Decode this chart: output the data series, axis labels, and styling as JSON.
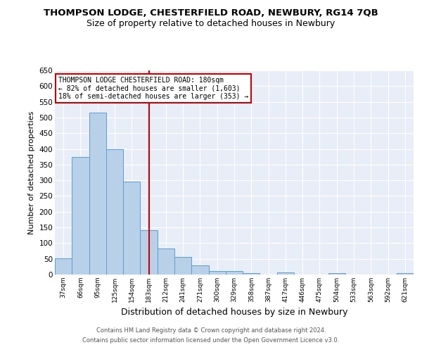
{
  "title": "THOMPSON LODGE, CHESTERFIELD ROAD, NEWBURY, RG14 7QB",
  "subtitle": "Size of property relative to detached houses in Newbury",
  "xlabel": "Distribution of detached houses by size in Newbury",
  "ylabel": "Number of detached properties",
  "footer_line1": "Contains HM Land Registry data © Crown copyright and database right 2024.",
  "footer_line2": "Contains public sector information licensed under the Open Government Licence v3.0.",
  "categories": [
    "37sqm",
    "66sqm",
    "95sqm",
    "125sqm",
    "154sqm",
    "183sqm",
    "212sqm",
    "241sqm",
    "271sqm",
    "300sqm",
    "329sqm",
    "358sqm",
    "387sqm",
    "417sqm",
    "446sqm",
    "475sqm",
    "504sqm",
    "533sqm",
    "563sqm",
    "592sqm",
    "621sqm"
  ],
  "values": [
    51,
    375,
    515,
    400,
    295,
    142,
    84,
    55,
    30,
    11,
    12,
    5,
    0,
    6,
    1,
    0,
    5,
    0,
    1,
    0,
    5
  ],
  "bar_color": "#b8d0e8",
  "bar_edge_color": "#5b9bd5",
  "vline_x_index": 5,
  "vline_color": "#cc0000",
  "annotation_text": "THOMPSON LODGE CHESTERFIELD ROAD: 180sqm\n← 82% of detached houses are smaller (1,603)\n18% of semi-detached houses are larger (353) →",
  "annotation_box_edge_color": "#cc0000",
  "ylim": [
    0,
    650
  ],
  "yticks": [
    0,
    50,
    100,
    150,
    200,
    250,
    300,
    350,
    400,
    450,
    500,
    550,
    600,
    650
  ],
  "bg_color": "#e8eef7",
  "title_fontsize": 9.5,
  "subtitle_fontsize": 9,
  "xlabel_fontsize": 9,
  "ylabel_fontsize": 8
}
